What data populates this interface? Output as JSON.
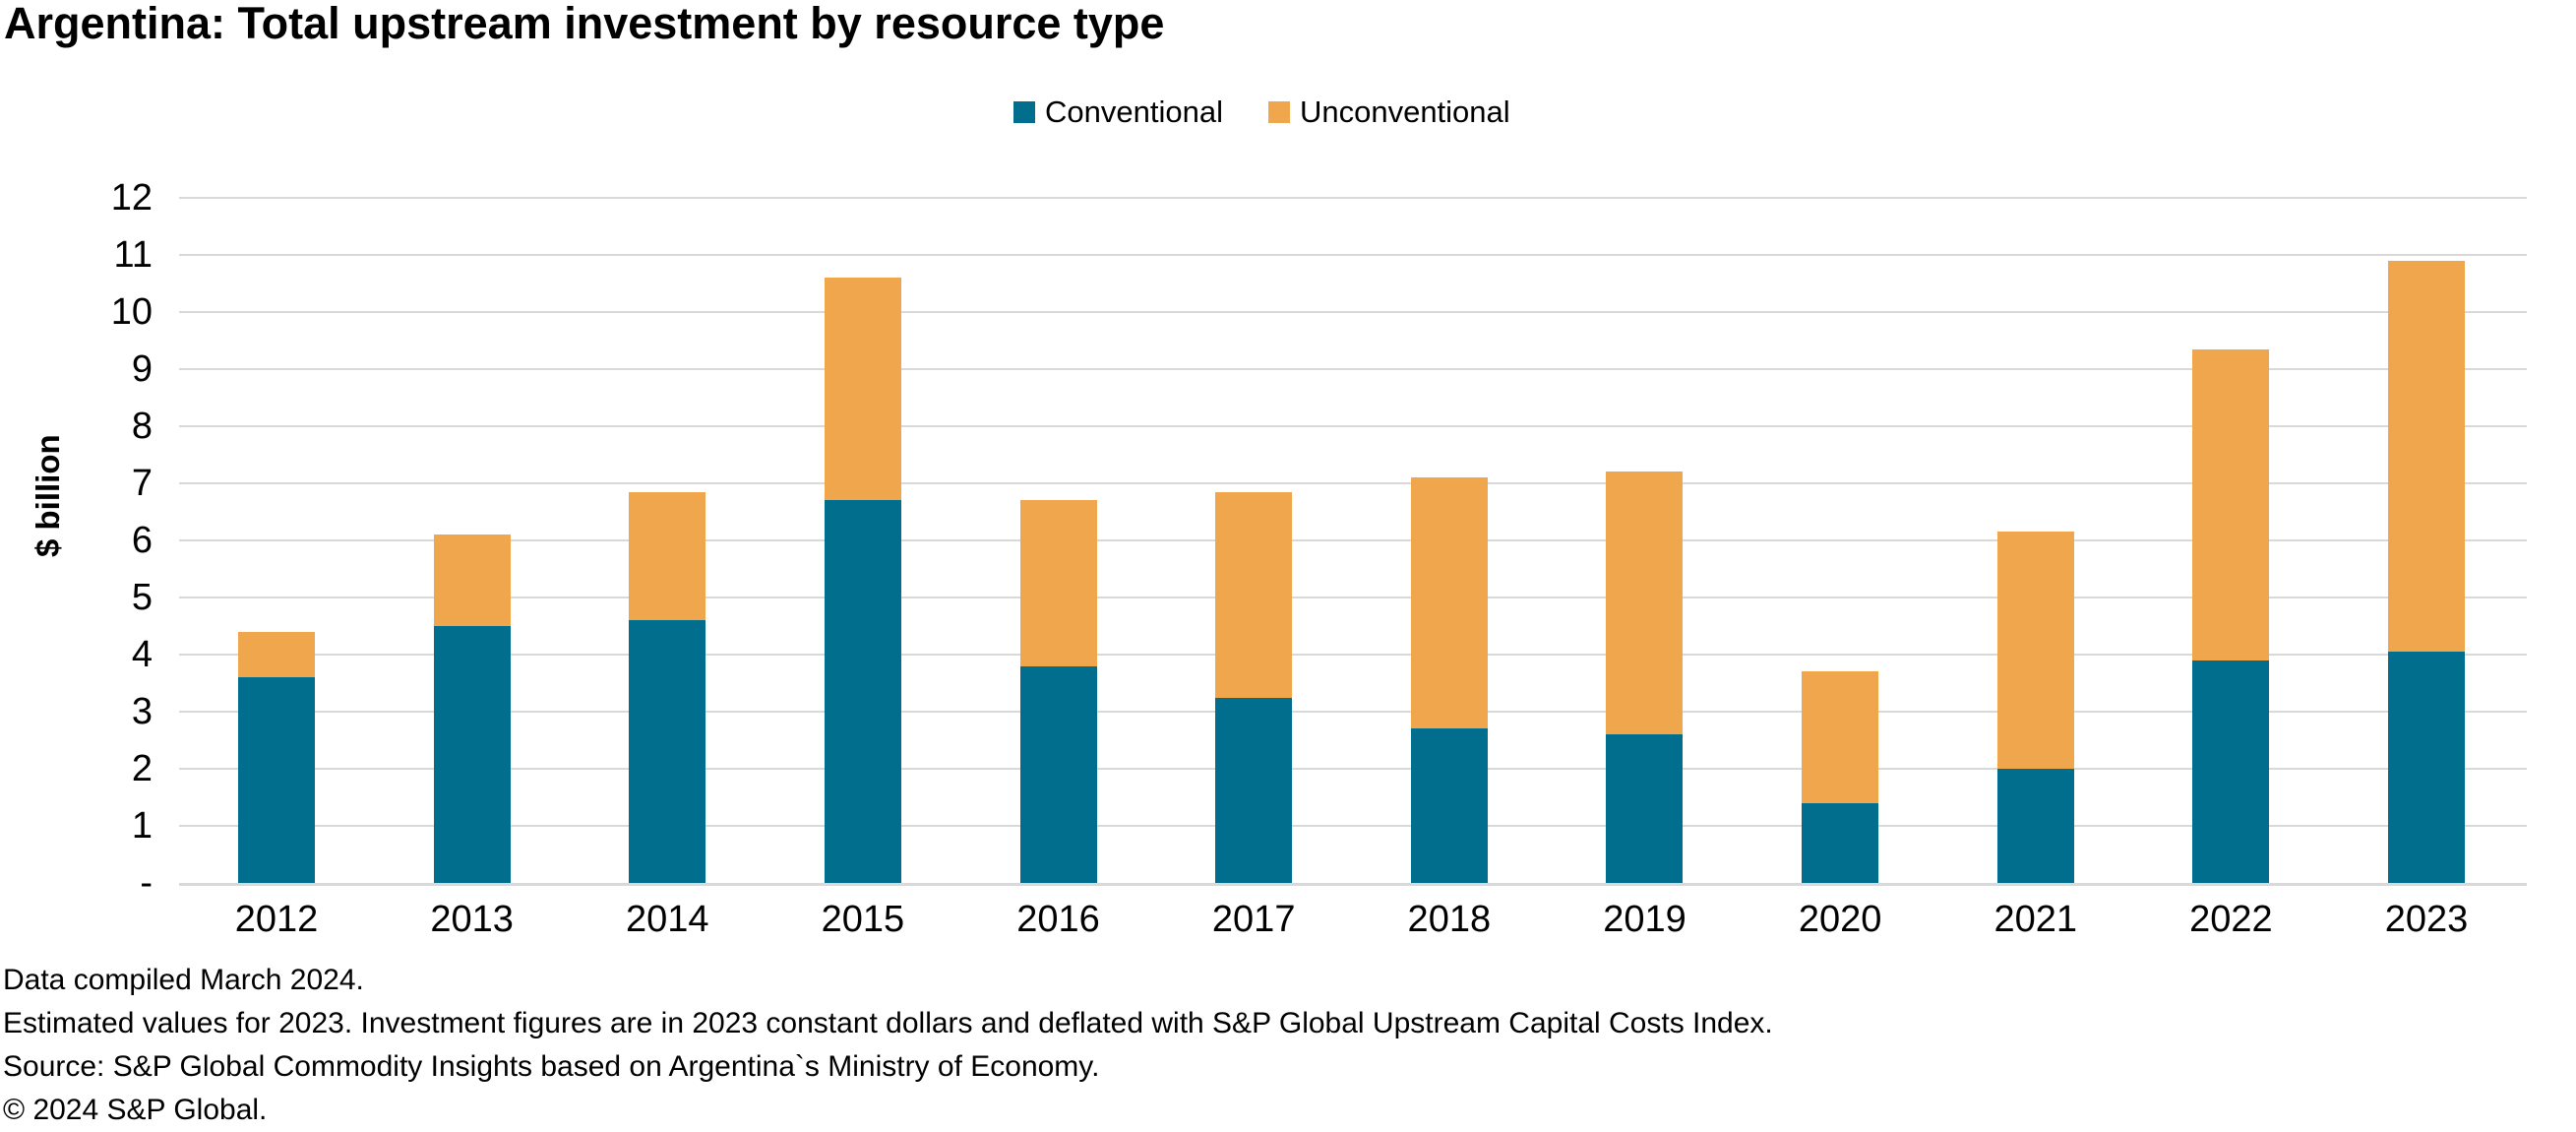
{
  "title": "Argentina: Total upstream investment by resource type",
  "y_axis_title": "$ billion",
  "legend": [
    {
      "label": "Conventional",
      "color": "#006E8C"
    },
    {
      "label": "Unconventional",
      "color": "#F0A64C"
    }
  ],
  "y_ticks": [
    "12",
    "11",
    "10",
    "9",
    "8",
    "7",
    "6",
    "5",
    "4",
    "3",
    "2",
    "1",
    "-"
  ],
  "footnotes": [
    "Data compiled March 2024.",
    "Estimated values for 2023. Investment figures are in 2023 constant dollars and deflated with S&P Global Upstream Capital Costs Index.",
    "Source: S&P Global Commodity Insights based on Argentina`s Ministry of Economy.",
    "© 2024 S&P Global."
  ],
  "colors": {
    "conventional": "#006E8C",
    "unconventional": "#F0A64C",
    "gridline": "#D9D9D9"
  },
  "chart_data": {
    "type": "bar",
    "stacked": true,
    "title": "Argentina: Total upstream investment by resource type",
    "xlabel": "",
    "ylabel": "$ billion",
    "ylim": [
      0,
      12
    ],
    "y_tick_step": 1,
    "grid": true,
    "legend_position": "top",
    "categories": [
      "2012",
      "2013",
      "2014",
      "2015",
      "2016",
      "2017",
      "2018",
      "2019",
      "2020",
      "2021",
      "2022",
      "2023"
    ],
    "series": [
      {
        "name": "Conventional",
        "color": "#006E8C",
        "values": [
          3.6,
          4.5,
          4.6,
          6.7,
          3.8,
          3.25,
          2.7,
          2.6,
          1.4,
          2.0,
          3.9,
          4.05
        ]
      },
      {
        "name": "Unconventional",
        "color": "#F0A64C",
        "values": [
          0.8,
          1.6,
          2.25,
          3.9,
          2.9,
          3.6,
          4.4,
          4.6,
          2.3,
          4.15,
          5.45,
          6.85
        ]
      }
    ],
    "totals": [
      4.4,
      6.1,
      6.85,
      10.6,
      6.7,
      6.85,
      7.1,
      7.2,
      3.7,
      6.15,
      9.35,
      10.9
    ]
  }
}
